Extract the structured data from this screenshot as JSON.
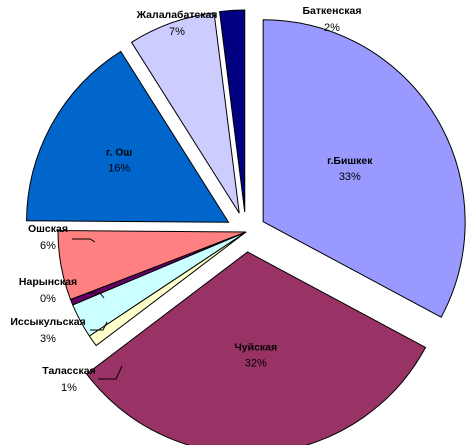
{
  "chart_data": {
    "type": "pie",
    "exploded": true,
    "slices": [
      {
        "label": "г.Бишкек",
        "percent_text": "33%",
        "value": 33,
        "color": "#9999FF"
      },
      {
        "label": "Чуйская",
        "percent_text": "32%",
        "value": 32,
        "color": "#993366"
      },
      {
        "label": "Таласская",
        "percent_text": "1%",
        "value": 1,
        "color": "#FFFFCC"
      },
      {
        "label": "Иссыкульская",
        "percent_text": "3%",
        "value": 3,
        "color": "#CCFFFF"
      },
      {
        "label": "Нарынская",
        "percent_text": "0%",
        "value": 0.5,
        "color": "#660066"
      },
      {
        "label": "Ошская",
        "percent_text": "6%",
        "value": 6,
        "color": "#FF8080"
      },
      {
        "label": "г. Ош",
        "percent_text": "16%",
        "value": 16,
        "color": "#0066CC"
      },
      {
        "label": "Жалалабатская",
        "percent_text": "7%",
        "value": 7,
        "color": "#CCCCFF"
      },
      {
        "label": "Баткенская",
        "percent_text": "2%",
        "value": 2,
        "color": "#000080"
      }
    ]
  }
}
